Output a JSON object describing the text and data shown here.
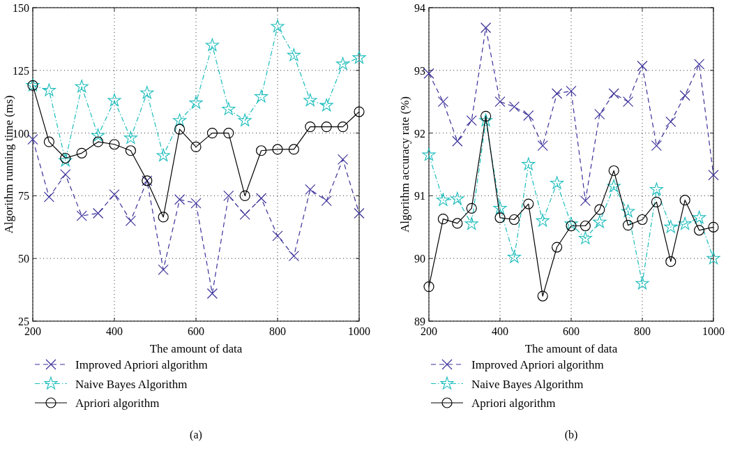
{
  "chart_data": [
    {
      "type": "line",
      "xlabel": "The amount of data",
      "ylabel": "Algorithm running time (ms)",
      "annotations": [
        "(a)"
      ],
      "x": [
        200,
        240,
        280,
        320,
        360,
        400,
        440,
        480,
        520,
        560,
        600,
        640,
        680,
        720,
        760,
        800,
        840,
        880,
        920,
        960,
        1000
      ],
      "xlim": [
        200,
        1000
      ],
      "xticks": [
        200,
        400,
        600,
        800,
        1000
      ],
      "ylim": [
        25,
        150
      ],
      "yticks": [
        25,
        50,
        75,
        100,
        125,
        150
      ],
      "grid": true,
      "legend": "bottom",
      "series": [
        {
          "name": "Improved Apriori algorithm",
          "color": "#3b3199",
          "marker": "cross",
          "line_style": "dashed",
          "values": [
            97.5,
            74.5,
            83.5,
            67,
            68,
            75.5,
            65,
            81,
            45.5,
            73.5,
            72,
            36,
            75,
            67.5,
            74,
            59,
            51,
            77.5,
            73,
            89.5,
            68
          ]
        },
        {
          "name": "Naive Bayes Algorithm",
          "color": "#1bbcbc",
          "marker": "star",
          "line_style": "dashdot",
          "values": [
            119,
            117,
            89,
            118.5,
            99,
            113,
            98,
            116,
            91,
            105,
            112,
            135,
            109.5,
            105,
            114.5,
            142.5,
            131,
            113,
            111,
            127.5,
            130
          ]
        },
        {
          "name": "Apriori algorithm",
          "color": "#000000",
          "marker": "circle",
          "line_style": "solid",
          "values": [
            119,
            96.5,
            90,
            92,
            96.5,
            95.5,
            93,
            81,
            66.5,
            101.5,
            94.5,
            100,
            100,
            75,
            93,
            93.5,
            93.5,
            102.5,
            102.5,
            102.5,
            108.5
          ]
        }
      ]
    },
    {
      "type": "line",
      "xlabel": "The amount of data",
      "ylabel": "Algorithm accuracy rate (%)",
      "annotations": [
        "(b)"
      ],
      "x": [
        200,
        240,
        280,
        320,
        360,
        400,
        440,
        480,
        520,
        560,
        600,
        640,
        680,
        720,
        760,
        800,
        840,
        880,
        920,
        960,
        1000
      ],
      "xlim": [
        200,
        1000
      ],
      "xticks": [
        200,
        400,
        600,
        800,
        1000
      ],
      "ylim": [
        89,
        94
      ],
      "yticks": [
        89,
        90,
        91,
        92,
        93,
        94
      ],
      "grid": true,
      "legend": "bottom",
      "series": [
        {
          "name": "Improved Apriori algorithm",
          "color": "#3b3199",
          "marker": "cross",
          "line_style": "dashed",
          "values": [
            92.95,
            92.5,
            91.87,
            92.2,
            93.68,
            92.5,
            92.42,
            92.28,
            91.8,
            92.63,
            92.67,
            90.92,
            92.3,
            92.63,
            92.5,
            93.07,
            91.8,
            92.18,
            92.6,
            93.1,
            91.33
          ]
        },
        {
          "name": "Naive Bayes Algorithm",
          "color": "#1bbcbc",
          "marker": "star",
          "line_style": "dashdot",
          "values": [
            91.65,
            90.93,
            90.95,
            90.55,
            92.2,
            90.8,
            90.02,
            91.5,
            90.6,
            91.2,
            90.55,
            90.32,
            90.58,
            91.15,
            90.75,
            89.6,
            91.1,
            90.5,
            90.55,
            90.65,
            90.0
          ]
        },
        {
          "name": "Apriori algorithm",
          "color": "#000000",
          "marker": "circle",
          "line_style": "solid",
          "values": [
            89.55,
            90.63,
            90.56,
            90.8,
            92.27,
            90.65,
            90.62,
            90.87,
            89.4,
            90.18,
            90.52,
            90.52,
            90.78,
            91.4,
            90.53,
            90.62,
            90.9,
            89.95,
            90.93,
            90.45,
            90.5
          ]
        }
      ]
    }
  ]
}
